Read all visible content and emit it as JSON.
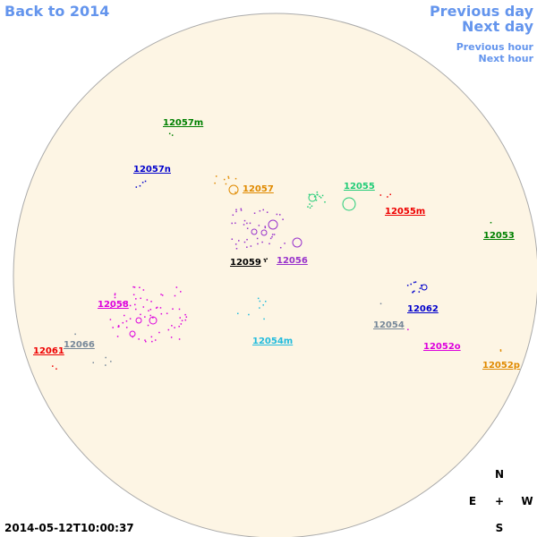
{
  "nav": {
    "back": "Back to 2014",
    "previous_day": "Previous day",
    "next_day": "Next day",
    "previous_hour": "Previous hour",
    "next_hour": "Next hour"
  },
  "regions": [
    {
      "label": "12057m",
      "color": "#008000"
    },
    {
      "label": "12057n",
      "color": "#0000cc"
    },
    {
      "label": "12057",
      "color": "#e08a00"
    },
    {
      "label": "12055",
      "color": "#22cc77"
    },
    {
      "label": "12055m",
      "color": "#ee0000"
    },
    {
      "label": "12053",
      "color": "#008000"
    },
    {
      "label": "12059",
      "color": "#000000"
    },
    {
      "label": "12056",
      "color": "#9933cc"
    },
    {
      "label": "12058",
      "color": "#dd00dd"
    },
    {
      "label": "12062",
      "color": "#0000cc"
    },
    {
      "label": "12054",
      "color": "#778899"
    },
    {
      "label": "12054m",
      "color": "#22bbdd"
    },
    {
      "label": "12061",
      "color": "#ee0000"
    },
    {
      "label": "12066",
      "color": "#778899"
    },
    {
      "label": "12052o",
      "color": "#dd00dd"
    },
    {
      "label": "12052p",
      "color": "#e08a00"
    }
  ],
  "timestamp": "2014-05-12T10:00:37",
  "compass": {
    "north": "N",
    "east": "E",
    "center": "+",
    "west": "W",
    "south": "S"
  }
}
